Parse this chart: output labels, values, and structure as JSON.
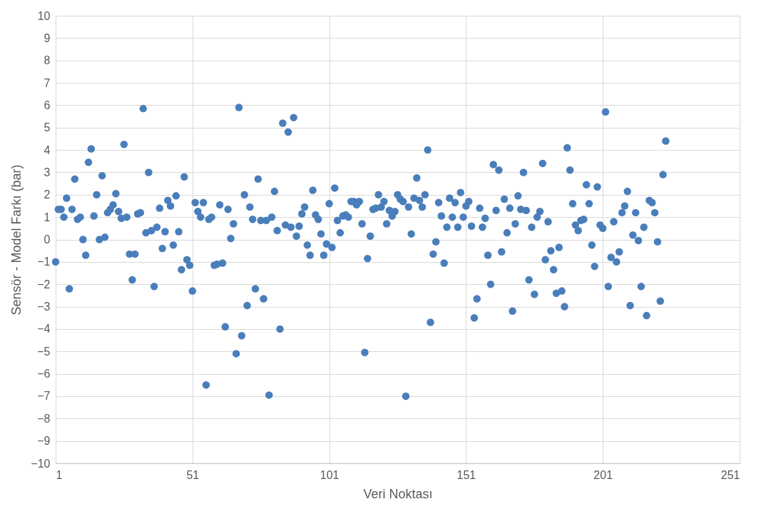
{
  "chart_data": {
    "type": "scatter",
    "xlabel": "Veri Noktası",
    "ylabel": "Sensör - Model Farkı (bar)",
    "xlim": [
      1,
      251
    ],
    "xticks": [
      1,
      51,
      101,
      151,
      201,
      251
    ],
    "ylim": [
      -10,
      10
    ],
    "yticks": [
      -10,
      -9,
      -8,
      -7,
      -6,
      -5,
      -4,
      -3,
      -2,
      -1,
      0,
      1,
      2,
      3,
      4,
      5,
      6,
      7,
      8,
      9,
      10
    ],
    "grid": true,
    "marker": "circle",
    "x": [
      1,
      2,
      3,
      4,
      5,
      6,
      7,
      8,
      9,
      10,
      11,
      12,
      13,
      14,
      15,
      16,
      17,
      18,
      19,
      20,
      21,
      22,
      23,
      24,
      25,
      26,
      27,
      28,
      29,
      30,
      31,
      32,
      33,
      34,
      35,
      36,
      37,
      38,
      39,
      40,
      41,
      42,
      43,
      44,
      45,
      46,
      47,
      48,
      49,
      50,
      51,
      52,
      53,
      54,
      55,
      56,
      57,
      58,
      59,
      60,
      61,
      62,
      63,
      64,
      65,
      66,
      67,
      68,
      69,
      70,
      71,
      72,
      73,
      74,
      75,
      76,
      77,
      78,
      79,
      80,
      81,
      82,
      83,
      84,
      85,
      86,
      87,
      88,
      89,
      90,
      91,
      92,
      93,
      94,
      95,
      96,
      97,
      98,
      99,
      100,
      101,
      102,
      103,
      104,
      105,
      106,
      107,
      108,
      109,
      110,
      111,
      112,
      113,
      114,
      115,
      116,
      117,
      118,
      119,
      120,
      121,
      122,
      123,
      124,
      125,
      126,
      127,
      128,
      129,
      130,
      131,
      132,
      133,
      134,
      135,
      136,
      137,
      138,
      139,
      140,
      141,
      142,
      143,
      144,
      145,
      146,
      147,
      148,
      149,
      150,
      151,
      152,
      153,
      154,
      155,
      156,
      157,
      158,
      159,
      160,
      161,
      162,
      163,
      164,
      165,
      166,
      167,
      168,
      169,
      170,
      171,
      172,
      173,
      174,
      175,
      176,
      177,
      178,
      179,
      180,
      181,
      182,
      183,
      184,
      185,
      186,
      187,
      188,
      189,
      190,
      191,
      192,
      193,
      194,
      195,
      196,
      197,
      198,
      199,
      200,
      201,
      202,
      203,
      204,
      205,
      206,
      207,
      208,
      209,
      210,
      211,
      212,
      213,
      214,
      215,
      216,
      217,
      218,
      219,
      220,
      221,
      222,
      223,
      224
    ],
    "series": [
      {
        "color": "#4a7ebb",
        "values": [
          -1.0,
          1.35,
          1.35,
          1.0,
          1.85,
          -2.2,
          1.35,
          2.7,
          0.9,
          1.0,
          0.0,
          -0.7,
          3.45,
          4.05,
          1.05,
          2.0,
          0.0,
          2.85,
          0.1,
          1.2,
          1.35,
          1.55,
          2.05,
          1.25,
          0.95,
          4.25,
          1.0,
          -0.65,
          -1.8,
          -0.65,
          1.15,
          1.2,
          5.85,
          0.3,
          3.0,
          0.4,
          -2.1,
          0.55,
          1.4,
          -0.4,
          0.35,
          1.75,
          1.5,
          -0.25,
          1.95,
          0.35,
          -1.35,
          2.8,
          -0.9,
          -1.15,
          -2.3,
          1.65,
          1.25,
          1.0,
          1.65,
          -6.5,
          0.9,
          1.0,
          -1.15,
          -1.1,
          1.55,
          -1.05,
          -3.9,
          1.35,
          0.05,
          0.7,
          -5.1,
          5.9,
          -4.3,
          2.0,
          -2.95,
          1.45,
          0.9,
          -2.2,
          2.7,
          0.85,
          -2.65,
          0.85,
          -6.95,
          1.0,
          2.15,
          0.4,
          -4.0,
          5.2,
          0.65,
          4.8,
          0.55,
          5.45,
          0.15,
          0.6,
          1.15,
          1.45,
          -0.25,
          -0.7,
          2.2,
          1.1,
          0.9,
          0.25,
          -0.7,
          -0.2,
          1.6,
          -0.35,
          2.3,
          0.85,
          0.3,
          1.05,
          1.1,
          1.0,
          1.7,
          1.7,
          1.55,
          1.7,
          0.7,
          -5.05,
          -0.85,
          0.15,
          1.35,
          1.4,
          2.0,
          1.45,
          1.7,
          0.7,
          1.3,
          1.05,
          1.25,
          2.0,
          1.8,
          1.7,
          -7.0,
          1.45,
          0.25,
          1.85,
          2.75,
          1.75,
          1.45,
          2.0,
          4.0,
          -3.7,
          -0.65,
          -0.1,
          1.65,
          1.05,
          -1.05,
          0.55,
          1.85,
          1.0,
          1.65,
          0.55,
          2.1,
          1.0,
          1.5,
          1.7,
          0.6,
          -3.5,
          -2.65,
          1.4,
          0.55,
          0.95,
          -0.7,
          -2.0,
          3.35,
          1.3,
          3.1,
          -0.55,
          1.8,
          0.3,
          1.4,
          -3.2,
          0.7,
          1.95,
          1.35,
          3.0,
          1.3,
          -1.8,
          0.55,
          -2.45,
          1.0,
          1.25,
          3.4,
          -0.9,
          0.8,
          -0.5,
          -1.35,
          -2.4,
          -0.35,
          -2.3,
          -3.0,
          4.1,
          3.1,
          1.6,
          0.65,
          0.4,
          0.85,
          0.9,
          2.45,
          1.6,
          -0.25,
          -1.2,
          2.35,
          0.65,
          0.5,
          5.7,
          -2.1,
          -0.8,
          0.8,
          -1.0,
          -0.55,
          1.2,
          1.5,
          2.15,
          -2.95,
          0.2,
          1.2,
          -0.05,
          -2.1,
          0.55,
          -3.4,
          1.75,
          1.65,
          1.2,
          -0.1,
          -2.75,
          2.9,
          4.4
        ]
      }
    ]
  }
}
